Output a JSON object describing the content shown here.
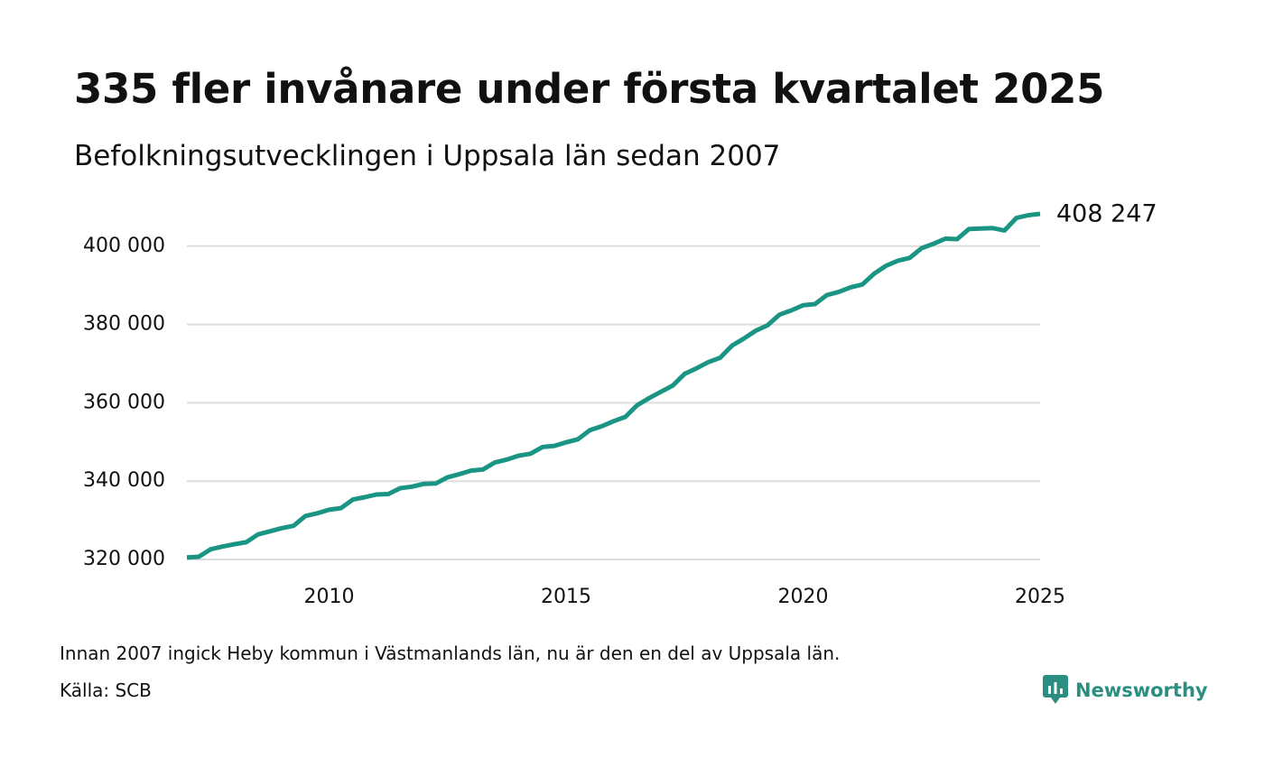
{
  "header": {
    "title": "335 fler invånare under första kvartalet 2025",
    "subtitle": "Befolkningsutvecklingen i Uppsala län sedan 2007"
  },
  "footer": {
    "note": "Innan 2007 ingick Heby kommun i Västmanlands län, nu är den en del av Uppsala län.",
    "source": "Källa: SCB"
  },
  "brand": {
    "name": "Newsworthy",
    "icon": "newsworthy-logo-icon",
    "color": "#2a8f80"
  },
  "colors": {
    "line": "#1a9483",
    "grid": "#dddddd",
    "text": "#111111"
  },
  "chart_data": {
    "type": "line",
    "title": "335 fler invånare under första kvartalet 2025",
    "subtitle": "Befolkningsutvecklingen i Uppsala län sedan 2007",
    "xlabel": "",
    "ylabel": "",
    "grid": true,
    "legend": "none",
    "xlim": [
      2007,
      2025
    ],
    "ylim": [
      320000,
      408247
    ],
    "x_ticks": [
      2010,
      2015,
      2020,
      2025
    ],
    "x_tick_labels": [
      "2010",
      "2015",
      "2020",
      "2025"
    ],
    "y_ticks": [
      320000,
      340000,
      360000,
      380000,
      400000
    ],
    "y_tick_labels": [
      "320 000",
      "340 000",
      "360 000",
      "380 000",
      "400 000"
    ],
    "end_label": "408 247",
    "series": [
      {
        "x": [
          2007.0,
          2007.25,
          2007.5,
          2007.75,
          2008.0,
          2008.25,
          2008.5,
          2008.75,
          2009.0,
          2009.25,
          2009.5,
          2009.75,
          2010.0,
          2010.25,
          2010.5,
          2010.75,
          2011.0,
          2011.25,
          2011.5,
          2011.75,
          2012.0,
          2012.25,
          2012.5,
          2012.75,
          2013.0,
          2013.25,
          2013.5,
          2013.75,
          2014.0,
          2014.25,
          2014.5,
          2014.75,
          2015.0,
          2015.25,
          2015.5,
          2015.75,
          2016.0,
          2016.25,
          2016.5,
          2016.75,
          2017.0,
          2017.25,
          2017.5,
          2017.75,
          2018.0,
          2018.25,
          2018.5,
          2018.75,
          2019.0,
          2019.25,
          2019.5,
          2019.75,
          2020.0,
          2020.25,
          2020.5,
          2020.75,
          2021.0,
          2021.25,
          2021.5,
          2021.75,
          2022.0,
          2022.25,
          2022.5,
          2022.75,
          2023.0,
          2023.25,
          2023.5,
          2023.75,
          2024.0,
          2024.25,
          2024.5,
          2024.75,
          2025.0
        ],
        "y": [
          320500,
          320700,
          322600,
          323300,
          323900,
          324400,
          326400,
          327200,
          328000,
          328600,
          331100,
          331800,
          332700,
          333100,
          335300,
          335900,
          336600,
          336700,
          338200,
          338600,
          339300,
          339400,
          341000,
          341800,
          342700,
          343000,
          344800,
          345500,
          346500,
          347000,
          348700,
          349000,
          349900,
          350700,
          353000,
          354000,
          355300,
          356400,
          359400,
          361200,
          362800,
          364400,
          367400,
          368800,
          370400,
          371500,
          374600,
          376400,
          378400,
          379800,
          382500,
          383600,
          384900,
          385200,
          387500,
          388300,
          389500,
          390200,
          393000,
          395000,
          396300,
          397000,
          399500,
          400600,
          401900,
          401800,
          404400,
          404500,
          404600,
          404000,
          407200,
          407900,
          408247
        ]
      }
    ]
  }
}
